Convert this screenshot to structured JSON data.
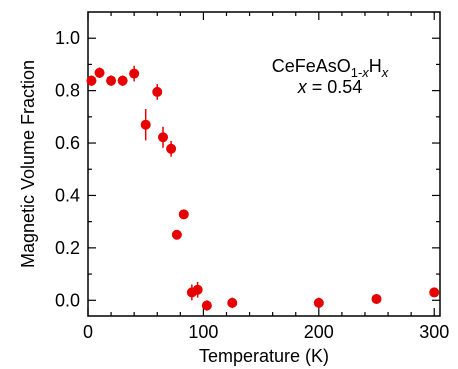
{
  "chart_data": {
    "type": "scatter",
    "xlabel": "Temperature (K)",
    "ylabel": "Magnetic Volume Fraction",
    "xlim": [
      0,
      305
    ],
    "ylim": [
      -0.06,
      1.1
    ],
    "x_ticks": [
      0,
      100,
      200,
      300
    ],
    "x_tick_labels": [
      "0",
      "100",
      "200",
      "300"
    ],
    "y_ticks": [
      0.0,
      0.2,
      0.4,
      0.6,
      0.8,
      1.0
    ],
    "y_tick_labels": [
      "0.0",
      "0.2",
      "0.4",
      "0.6",
      "0.8",
      "1.0"
    ],
    "marker_color": "#e60000",
    "annotation": {
      "formula_base": "CeFeAsO",
      "formula_sub": "1-",
      "formula_sub_var": "x",
      "formula_element": "H",
      "formula_var_sub": "x",
      "composition_var": "x",
      "composition_value": " = 0.54"
    },
    "series": [
      {
        "points": [
          {
            "x": 3,
            "y": 0.838,
            "err": 0.02
          },
          {
            "x": 10,
            "y": 0.868,
            "err": 0.02
          },
          {
            "x": 20,
            "y": 0.838,
            "err": 0.02
          },
          {
            "x": 30,
            "y": 0.838,
            "err": 0.02
          },
          {
            "x": 40,
            "y": 0.865,
            "err": 0.03
          },
          {
            "x": 50,
            "y": 0.67,
            "err": 0.06
          },
          {
            "x": 60,
            "y": 0.795,
            "err": 0.03
          },
          {
            "x": 65,
            "y": 0.622,
            "err": 0.04
          },
          {
            "x": 72,
            "y": 0.578,
            "err": 0.03
          },
          {
            "x": 77,
            "y": 0.25,
            "err": 0.01
          },
          {
            "x": 83,
            "y": 0.328,
            "err": 0.01
          },
          {
            "x": 90,
            "y": 0.03,
            "err": 0.03
          },
          {
            "x": 95,
            "y": 0.04,
            "err": 0.03
          },
          {
            "x": 103,
            "y": -0.02,
            "err": 0.02
          },
          {
            "x": 125,
            "y": -0.01,
            "err": 0.02
          },
          {
            "x": 200,
            "y": -0.01,
            "err": 0.02
          },
          {
            "x": 250,
            "y": 0.005,
            "err": 0.01
          },
          {
            "x": 300,
            "y": 0.03,
            "err": 0.01
          }
        ]
      }
    ]
  }
}
